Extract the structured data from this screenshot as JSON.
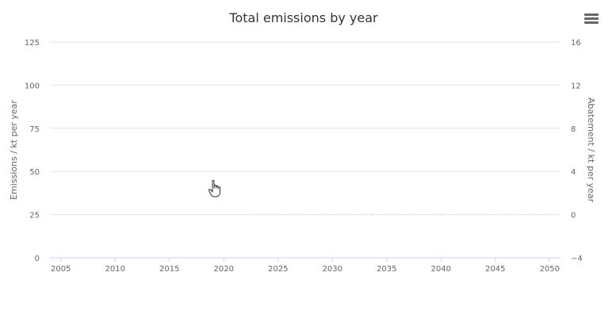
{
  "chart_data": {
    "type": "line",
    "title": "Total emissions by year",
    "x_ticks": [
      "2005",
      "2010",
      "2015",
      "2020",
      "2025",
      "2030",
      "2035",
      "2040",
      "2045",
      "2050"
    ],
    "xlim": [
      2004,
      2051
    ],
    "y_left": {
      "label": "Emissions / kt per year",
      "ticks": [
        "0",
        "25",
        "50",
        "75",
        "100",
        "125"
      ],
      "range": [
        0,
        125
      ]
    },
    "y_right": {
      "label": "Abatement / kt per year",
      "ticks": [
        "−4",
        "0",
        "4",
        "8",
        "12",
        "16"
      ],
      "range": [
        -4,
        16
      ]
    },
    "series": [
      {
        "axis": "right",
        "style": "dashed",
        "color": "#e6e6e6",
        "x": [
          2023,
          2050
        ],
        "y": [
          0,
          0
        ]
      }
    ],
    "grid": true,
    "legend": "none"
  },
  "ui": {
    "menu_icon": "hamburger-menu-icon",
    "cursor_icon": "hand-pointer-icon"
  }
}
